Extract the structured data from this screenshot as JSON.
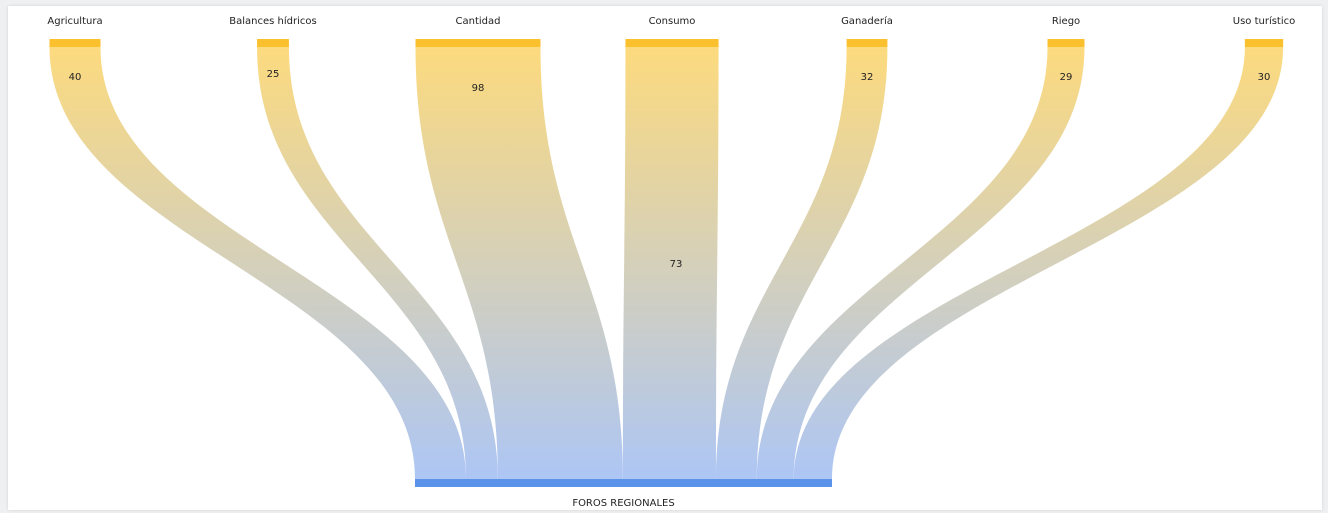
{
  "chart_data": {
    "type": "sankey",
    "title": "",
    "sources": [
      {
        "name": "Agricultura",
        "value": 40
      },
      {
        "name": "Balances hídricos",
        "value": 25
      },
      {
        "name": "Cantidad",
        "value": 98
      },
      {
        "name": "Consumo",
        "value": 73
      },
      {
        "name": "Ganadería",
        "value": 32
      },
      {
        "name": "Riego",
        "value": 29
      },
      {
        "name": "Uso turístico",
        "value": 30
      }
    ],
    "target": {
      "name": "FOROS REGIONALES"
    },
    "colors": {
      "source_node": "#fbc02d",
      "target_node": "#5b93ea",
      "link_top": "#fcd877",
      "link_bottom": "#a9c3f4"
    }
  }
}
